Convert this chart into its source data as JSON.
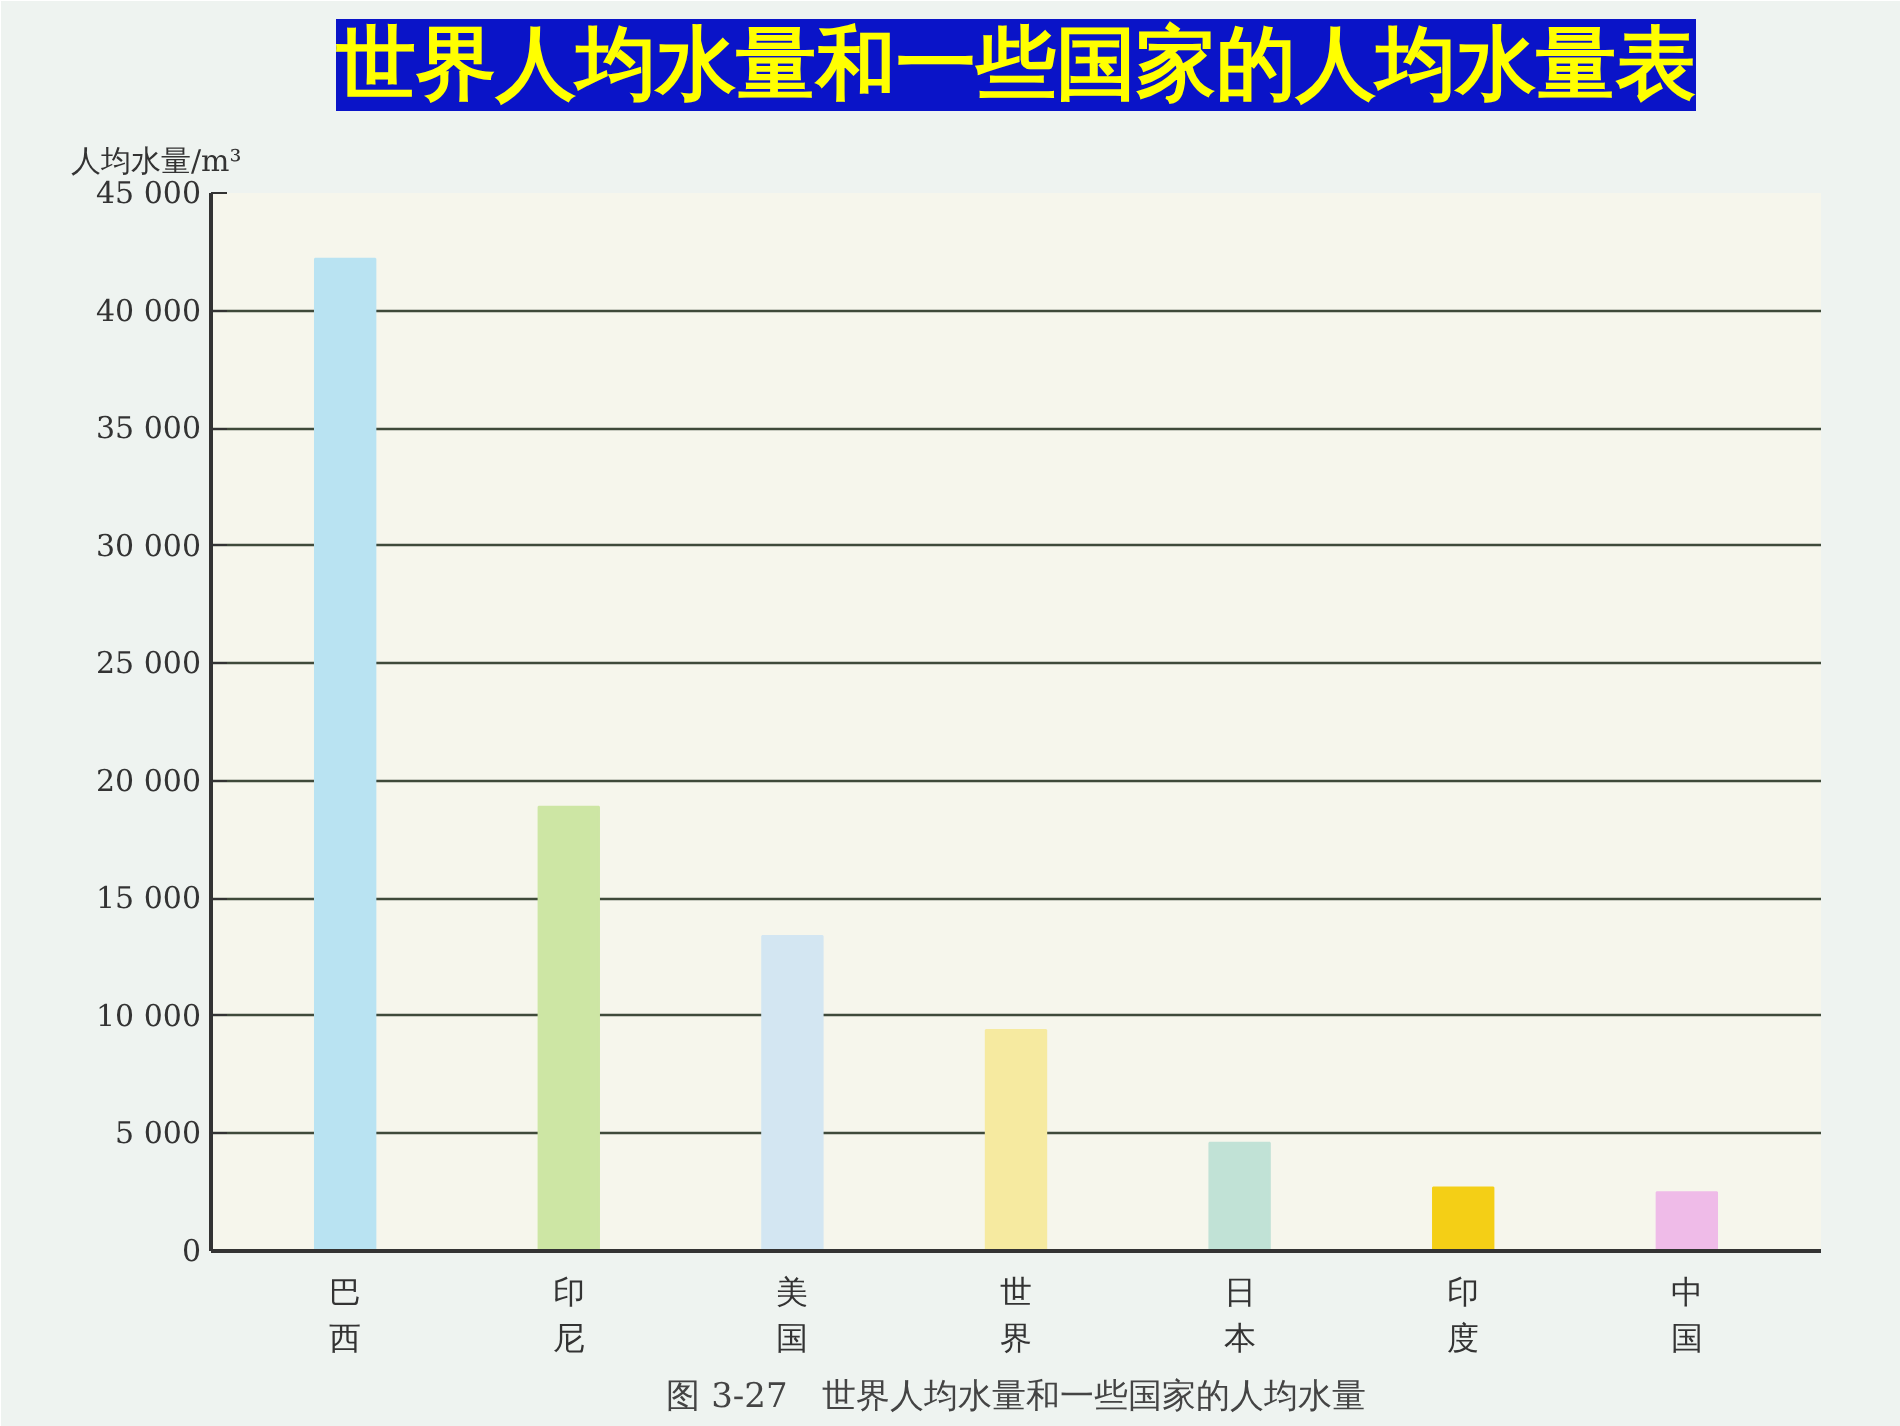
{
  "chart_data": {
    "type": "bar",
    "title": "世界人均水量和一些国家的人均水量表",
    "ylabel": "人均水量/m³",
    "annotations": [
      "图 3-27　世界人均水量和一些国家的人均水量"
    ],
    "categories": [
      "巴西",
      "印尼",
      "美国",
      "世界",
      "日本",
      "印度",
      "中国"
    ],
    "values": [
      42200,
      18900,
      13400,
      9400,
      4600,
      2700,
      2500
    ],
    "colors": [
      "#b9e3f2",
      "#cde6a4",
      "#d3e6f2",
      "#f6eaa0",
      "#c1e2d6",
      "#f4cf16",
      "#efbbe8"
    ],
    "ylim": [
      0,
      45000
    ],
    "yticks": [
      0,
      {
        "value": 5000,
        "label": "5 000"
      },
      {
        "value": 10000,
        "label": "10 000"
      },
      {
        "value": 15000,
        "label": "15 000"
      },
      {
        "value": 20000,
        "label": "20 000"
      },
      {
        "value": 25000,
        "label": "25 000"
      },
      {
        "value": 30000,
        "label": "30 000"
      },
      {
        "value": 35000,
        "label": "35 000"
      },
      {
        "value": 40000,
        "label": "40 000"
      },
      {
        "value": 45000,
        "label": "45 000"
      }
    ],
    "grid": "y"
  }
}
